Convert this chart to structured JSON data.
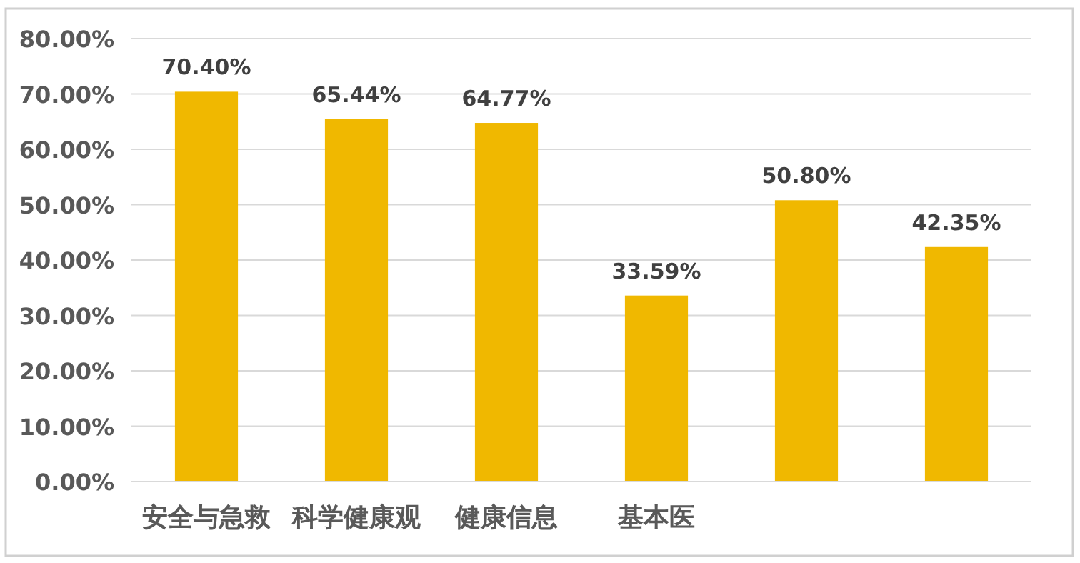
{
  "chart_data": {
    "type": "bar",
    "categories": [
      "安全与急救",
      "科学健康观",
      "健康信息",
      "基本医",
      null,
      null
    ],
    "values": [
      70.4,
      65.44,
      64.77,
      33.59,
      50.8,
      42.35
    ],
    "value_labels": [
      "70.40%",
      "65.44%",
      "64.77%",
      "33.59%",
      "50.80%",
      "42.35%"
    ],
    "color": "#f0b800",
    "ylim": [
      0,
      80
    ],
    "yticks": [
      {
        "value": 0,
        "label": "0.00%"
      },
      {
        "value": 10,
        "label": "10.00%"
      },
      {
        "value": 20,
        "label": "20.00%"
      },
      {
        "value": 30,
        "label": "30.00%"
      },
      {
        "value": 40,
        "label": "40.00%"
      },
      {
        "value": 50,
        "label": "50.00%"
      },
      {
        "value": 60,
        "label": "60.00%"
      },
      {
        "value": 70,
        "label": "70.00%"
      },
      {
        "value": 80,
        "label": "80.00%"
      }
    ],
    "grid": "y"
  }
}
